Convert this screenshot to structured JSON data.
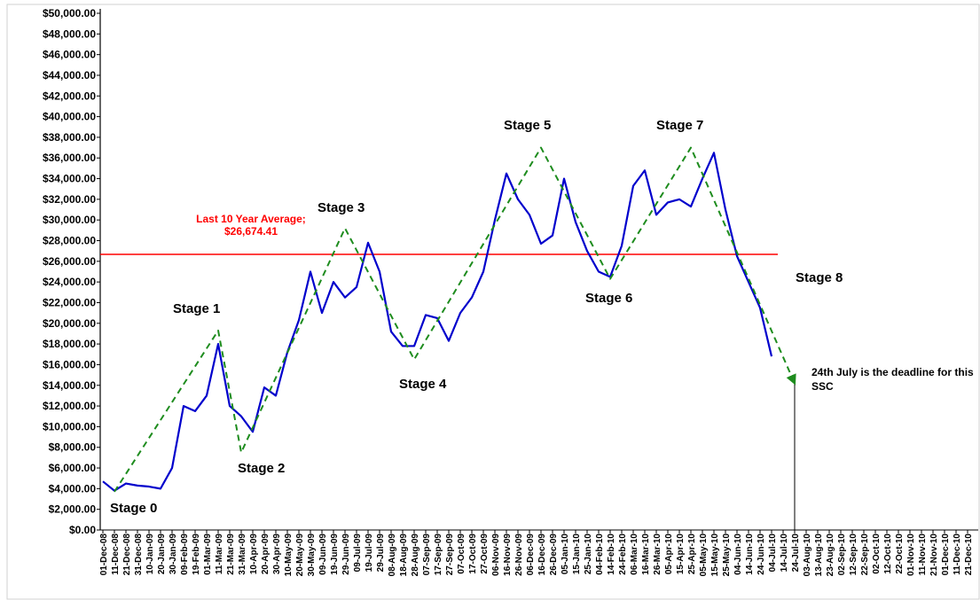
{
  "chart_data": {
    "type": "line",
    "categories": [
      "01-Dec-08",
      "11-Dec-08",
      "21-Dec-08",
      "31-Dec-08",
      "10-Jan-09",
      "20-Jan-09",
      "30-Jan-09",
      "09-Feb-09",
      "19-Feb-09",
      "01-Mar-09",
      "11-Mar-09",
      "21-Mar-09",
      "31-Mar-09",
      "10-Apr-09",
      "20-Apr-09",
      "30-Apr-09",
      "10-May-09",
      "20-May-09",
      "30-May-09",
      "09-Jun-09",
      "19-Jun-09",
      "29-Jun-09",
      "09-Jul-09",
      "19-Jul-09",
      "29-Jul-09",
      "08-Aug-09",
      "18-Aug-09",
      "28-Aug-09",
      "07-Sep-09",
      "17-Sep-09",
      "27-Sep-09",
      "07-Oct-09",
      "17-Oct-09",
      "27-Oct-09",
      "06-Nov-09",
      "16-Nov-09",
      "26-Nov-09",
      "06-Dec-09",
      "16-Dec-09",
      "26-Dec-09",
      "05-Jan-10",
      "15-Jan-10",
      "25-Jan-10",
      "04-Feb-10",
      "14-Feb-10",
      "24-Feb-10",
      "06-Mar-10",
      "16-Mar-10",
      "26-Mar-10",
      "05-Apr-10",
      "15-Apr-10",
      "25-Apr-10",
      "05-May-10",
      "15-May-10",
      "25-May-10",
      "04-Jun-10",
      "14-Jun-10",
      "24-Jun-10",
      "04-Jul-10",
      "14-Jul-10",
      "24-Jul-10",
      "03-Aug-10",
      "13-Aug-10",
      "23-Aug-10",
      "02-Sep-10",
      "12-Sep-10",
      "22-Sep-10",
      "02-Oct-10",
      "12-Oct-10",
      "22-Oct-10",
      "01-Nov-10",
      "11-Nov-10",
      "21-Nov-10",
      "01-Dec-10",
      "11-Dec-10",
      "21-Dec-10"
    ],
    "series": [
      {
        "color": "#0000cc",
        "values": [
          4700,
          3800,
          4500,
          4300,
          4200,
          4000,
          6000,
          12000,
          11500,
          13000,
          18000,
          12000,
          11000,
          9500,
          13800,
          13000,
          17200,
          20300,
          25000,
          21000,
          24000,
          22500,
          23500,
          27800,
          25000,
          19200,
          17800,
          17800,
          20800,
          20500,
          18300,
          21000,
          22500,
          25000,
          30000,
          34500,
          32000,
          30500,
          27700,
          28500,
          34000,
          29800,
          27000,
          25000,
          24500,
          27500,
          33300,
          34800,
          30500,
          31700,
          32000,
          31300,
          34000,
          36500,
          31000,
          26500,
          24000,
          21500,
          16800,
          null,
          null,
          null,
          null,
          null,
          null,
          null,
          null,
          null,
          null,
          null,
          null,
          null,
          null,
          null,
          null,
          null
        ]
      },
      {
        "color": "#1e8c1e",
        "dashed": true,
        "x": [
          "11-Dec-08",
          "11-Mar-09",
          "31-Mar-09",
          "29-Jun-09",
          "28-Aug-09",
          "16-Dec-09",
          "14-Feb-10",
          "25-Apr-10",
          "24-Jul-10"
        ],
        "values": [
          3700,
          19300,
          7500,
          29200,
          16500,
          37000,
          24300,
          37000,
          14200
        ],
        "arrow": true
      }
    ],
    "reference_line": {
      "label": "Last 10 Year Average;",
      "value": 26674.41,
      "value_label": "$26,674.41",
      "color": "#ff0000"
    },
    "deadline": {
      "x": "24-Jul-10",
      "color": "#000000"
    },
    "annotations": [
      "Stage 0",
      "Stage 1",
      "Stage 2",
      "Stage 3",
      "Stage 4",
      "Stage 5",
      "Stage 6",
      "Stage 7",
      "Stage 8",
      "24th July is the deadline for this SSC"
    ],
    "ylim": [
      0,
      50000
    ],
    "yticks": [
      {
        "value": 0,
        "label": "$0.00"
      },
      {
        "value": 2000,
        "label": "$2,000.00"
      },
      {
        "value": 4000,
        "label": "$4,000.00"
      },
      {
        "value": 6000,
        "label": "$6,000.00"
      },
      {
        "value": 8000,
        "label": "$8,000.00"
      },
      {
        "value": 10000,
        "label": "$10,000.00"
      },
      {
        "value": 12000,
        "label": "$12,000.00"
      },
      {
        "value": 14000,
        "label": "$14,000.00"
      },
      {
        "value": 16000,
        "label": "$16,000.00"
      },
      {
        "value": 18000,
        "label": "$18,000.00"
      },
      {
        "value": 20000,
        "label": "$20,000.00"
      },
      {
        "value": 22000,
        "label": "$22,000.00"
      },
      {
        "value": 24000,
        "label": "$24,000.00"
      },
      {
        "value": 26000,
        "label": "$26,000.00"
      },
      {
        "value": 28000,
        "label": "$28,000.00"
      },
      {
        "value": 30000,
        "label": "$30,000.00"
      },
      {
        "value": 32000,
        "label": "$32,000.00"
      },
      {
        "value": 34000,
        "label": "$34,000.00"
      },
      {
        "value": 36000,
        "label": "$36,000.00"
      },
      {
        "value": 38000,
        "label": "$38,000.00"
      },
      {
        "value": 40000,
        "label": "$40,000.00"
      },
      {
        "value": 42000,
        "label": "$42,000.00"
      },
      {
        "value": 44000,
        "label": "$44,000.00"
      },
      {
        "value": 46000,
        "label": "$46,000.00"
      },
      {
        "value": 48000,
        "label": "$48,000.00"
      },
      {
        "value": 50000,
        "label": "$50,000.00"
      }
    ],
    "grid": false
  }
}
